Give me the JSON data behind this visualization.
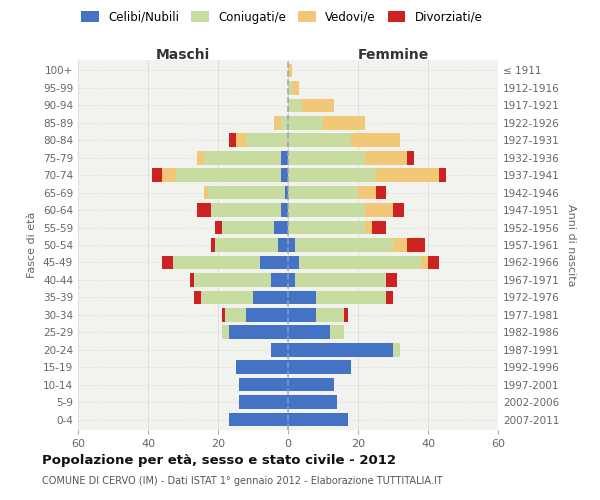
{
  "age_groups": [
    "0-4",
    "5-9",
    "10-14",
    "15-19",
    "20-24",
    "25-29",
    "30-34",
    "35-39",
    "40-44",
    "45-49",
    "50-54",
    "55-59",
    "60-64",
    "65-69",
    "70-74",
    "75-79",
    "80-84",
    "85-89",
    "90-94",
    "95-99",
    "100+"
  ],
  "birth_years": [
    "2007-2011",
    "2002-2006",
    "1997-2001",
    "1992-1996",
    "1987-1991",
    "1982-1986",
    "1977-1981",
    "1972-1976",
    "1967-1971",
    "1962-1966",
    "1957-1961",
    "1952-1956",
    "1947-1951",
    "1942-1946",
    "1937-1941",
    "1932-1936",
    "1927-1931",
    "1922-1926",
    "1917-1921",
    "1912-1916",
    "≤ 1911"
  ],
  "colors": {
    "celibi": "#4472c4",
    "coniugati": "#c8dba0",
    "vedovi": "#f0c878",
    "divorziati": "#cc2222",
    "bg": "#f2f2ee",
    "grid": "#cccccc",
    "centerline": "#9999bb"
  },
  "maschi": {
    "celibi": [
      17,
      14,
      14,
      15,
      5,
      17,
      12,
      10,
      5,
      8,
      3,
      4,
      2,
      1,
      2,
      2,
      0,
      0,
      0,
      0,
      0
    ],
    "coniugati": [
      0,
      0,
      0,
      0,
      0,
      2,
      6,
      15,
      22,
      25,
      18,
      15,
      20,
      22,
      30,
      22,
      12,
      2,
      0,
      0,
      0
    ],
    "vedovi": [
      0,
      0,
      0,
      0,
      0,
      0,
      0,
      0,
      0,
      0,
      0,
      0,
      0,
      1,
      4,
      2,
      3,
      2,
      0,
      0,
      0
    ],
    "divorziati": [
      0,
      0,
      0,
      0,
      0,
      0,
      1,
      2,
      1,
      3,
      1,
      2,
      4,
      0,
      3,
      0,
      2,
      0,
      0,
      0,
      0
    ]
  },
  "femmine": {
    "celibi": [
      17,
      14,
      13,
      18,
      30,
      12,
      8,
      8,
      2,
      3,
      2,
      0,
      0,
      0,
      0,
      0,
      0,
      0,
      0,
      0,
      0
    ],
    "coniugati": [
      0,
      0,
      0,
      0,
      2,
      4,
      8,
      20,
      26,
      35,
      28,
      22,
      22,
      20,
      25,
      22,
      18,
      10,
      4,
      1,
      0
    ],
    "vedovi": [
      0,
      0,
      0,
      0,
      0,
      0,
      0,
      0,
      0,
      2,
      4,
      2,
      8,
      5,
      18,
      12,
      14,
      12,
      9,
      2,
      1
    ],
    "divorziati": [
      0,
      0,
      0,
      0,
      0,
      0,
      1,
      2,
      3,
      3,
      5,
      4,
      3,
      3,
      2,
      2,
      0,
      0,
      0,
      0,
      0
    ]
  },
  "xlim": 60,
  "title": "Popolazione per età, sesso e stato civile - 2012",
  "subtitle": "COMUNE DI CERVO (IM) - Dati ISTAT 1° gennaio 2012 - Elaborazione TUTTITALIA.IT",
  "ylabel_left": "Fasce di età",
  "ylabel_right": "Anni di nascita",
  "xlabel_left": "Maschi",
  "xlabel_right": "Femmine"
}
